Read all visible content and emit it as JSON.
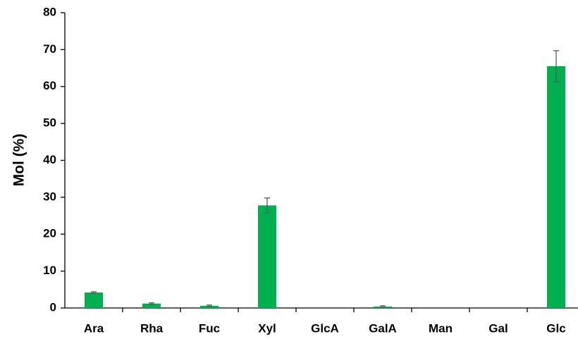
{
  "chart_data": {
    "type": "bar",
    "y_label": "Mol (%)",
    "categories": [
      "Ara",
      "Rha",
      "Fuc",
      "Xyl",
      "GlcA",
      "GalA",
      "Man",
      "Gal",
      "Glc"
    ],
    "values": [
      4.2,
      1.2,
      0.6,
      27.8,
      0,
      0.4,
      0,
      0,
      65.5
    ],
    "errors": [
      0.2,
      0.2,
      0.2,
      2.0,
      0,
      0.2,
      0,
      0,
      4.2
    ],
    "color": "#00b050",
    "error_color": "#595959",
    "ylim": [
      0,
      80
    ],
    "yticks": [
      0,
      10,
      20,
      30,
      40,
      50,
      60,
      70,
      80
    ],
    "grid": false
  }
}
